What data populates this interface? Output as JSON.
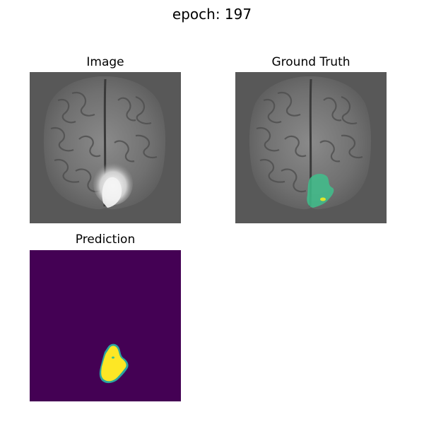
{
  "suptitle": "epoch: 197",
  "panels": [
    {
      "title": "Image"
    },
    {
      "title": "Ground Truth"
    },
    {
      "title": "Prediction"
    }
  ],
  "colors": {
    "background_gray": "#585858",
    "brain_gray": "#7a7a7a",
    "lesion_bright": "#f0f0f0",
    "mask_green": "#3fc08c",
    "mask_yellow": "#dfe62a",
    "prediction_background": "#440154",
    "prediction_mask": "#fde725",
    "prediction_edge": "#2aa5a0"
  }
}
